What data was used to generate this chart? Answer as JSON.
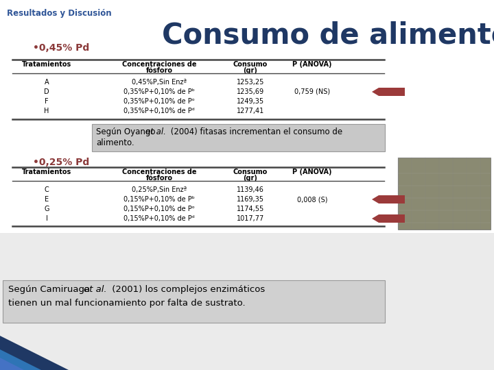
{
  "title": "Consumo de alimento",
  "header_text": "Resultados y Discusión",
  "subtitle1": "•0,45% Pd",
  "subtitle2": "•0,25% Pd",
  "table1_headers": [
    "Tratamientos",
    "Concentraciones de\nfósforo",
    "Consumo\n(gr)",
    "P (ANOVA)"
  ],
  "table1_rows": [
    [
      "A",
      "0,45%P,Sin Enzª",
      "1253,25",
      ""
    ],
    [
      "D",
      "0,35%P+0,10% de Pᵇ",
      "1235,69",
      "0,759 (NS)"
    ],
    [
      "F",
      "0,35%P+0,10% de Pᵒ",
      "1249,35",
      ""
    ],
    [
      "H",
      "0,35%P+0,10% de Pᵈ",
      "1277,41",
      ""
    ]
  ],
  "table2_headers": [
    "Tratamientos",
    "Concentraciones de\nfósforo",
    "Consumo\n(gr)",
    "P (ANOVA)"
  ],
  "table2_rows": [
    [
      "C",
      "0,25%P,Sin Enzª",
      "1139,46",
      ""
    ],
    [
      "E",
      "0,15%P+0,10% de Pᵇ",
      "1169,35",
      "0,008 (S)"
    ],
    [
      "G",
      "0,15%P+0,10% de Pᵒ",
      "1174,55",
      ""
    ],
    [
      "I",
      "0,15%P+0,10% de Pᵈ",
      "1017,77",
      ""
    ]
  ],
  "header_color": "#2F5597",
  "subtitle_color": "#8B3A3A",
  "title_color": "#1F3864",
  "bg_color": "#FFFFFF",
  "arrow_color": "#9B3A3A",
  "note_bg": "#C8C8C8",
  "note_border": "#999999",
  "table_line_color": "#444444",
  "bottom_triangle1": "#1F3864",
  "bottom_triangle2": "#2E74B5",
  "bottom_triangle3": "#4472C4"
}
